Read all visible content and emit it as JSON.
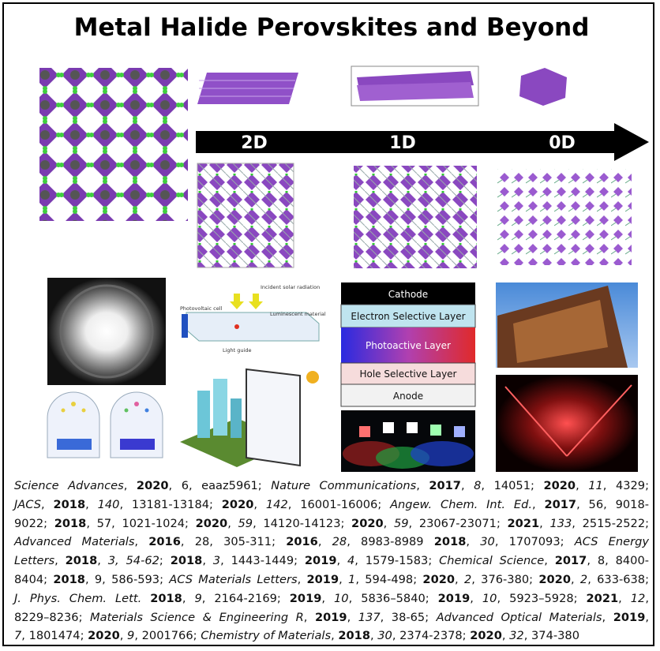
{
  "title": "Metal Halide Perovskites and Beyond",
  "dimensions": [
    "2D",
    "1D",
    "0D"
  ],
  "solar_diagram": {
    "labels": [
      "Incident solar radiation",
      "Photovoltaic cell",
      "Luminescent material",
      "Light guide"
    ]
  },
  "device_stack": [
    "Cathode",
    "Electron Selective Layer",
    "Photoactive Layer",
    "Hole Selective Layer",
    "Anode"
  ],
  "references": [
    [
      {
        "text": "Science Advances",
        "style": "italic"
      },
      {
        "text": ", "
      },
      {
        "text": "2020",
        "style": "bold"
      },
      {
        "text": ", 6, eaaz5961; "
      },
      {
        "text": "Nature Communications",
        "style": "italic"
      },
      {
        "text": ", "
      },
      {
        "text": "2017",
        "style": "bold"
      },
      {
        "text": ", "
      },
      {
        "text": "8",
        "style": "italic"
      },
      {
        "text": ", 14051; "
      },
      {
        "text": "2020",
        "style": "bold"
      },
      {
        "text": ", "
      },
      {
        "text": "11",
        "style": "italic"
      },
      {
        "text": ", 4329;"
      }
    ],
    [
      {
        "text": "JACS",
        "style": "italic"
      },
      {
        "text": ", "
      },
      {
        "text": "2018",
        "style": "bold"
      },
      {
        "text": ", "
      },
      {
        "text": "140",
        "style": "italic"
      },
      {
        "text": ", 13181-13184; "
      },
      {
        "text": "2020",
        "style": "bold"
      },
      {
        "text": ", "
      },
      {
        "text": "142",
        "style": "italic"
      },
      {
        "text": ", 16001-16006; "
      },
      {
        "text": "Angew. Chem. Int. Ed.",
        "style": "italic"
      },
      {
        "text": ", "
      },
      {
        "text": "2017",
        "style": "bold"
      },
      {
        "text": ", 56, 9018-"
      }
    ],
    [
      {
        "text": "9022; "
      },
      {
        "text": "2018",
        "style": "bold"
      },
      {
        "text": ", 57, 1021-1024; "
      },
      {
        "text": "2020",
        "style": "bold"
      },
      {
        "text": ", "
      },
      {
        "text": "59",
        "style": "italic"
      },
      {
        "text": ", 14120-14123; "
      },
      {
        "text": "2020",
        "style": "bold"
      },
      {
        "text": ", "
      },
      {
        "text": "59",
        "style": "italic"
      },
      {
        "text": ", 23067-23071; "
      },
      {
        "text": "2021",
        "style": "bold"
      },
      {
        "text": ", "
      },
      {
        "text": "133",
        "style": "italic"
      },
      {
        "text": ", 2515-2522;"
      }
    ],
    [
      {
        "text": "Advanced Materials",
        "style": "italic"
      },
      {
        "text": ", "
      },
      {
        "text": "2016",
        "style": "bold"
      },
      {
        "text": ", 28, 305-311; "
      },
      {
        "text": "2016",
        "style": "bold"
      },
      {
        "text": ", "
      },
      {
        "text": "28",
        "style": "italic"
      },
      {
        "text": ", 8983-8989 "
      },
      {
        "text": "2018",
        "style": "bold"
      },
      {
        "text": ", "
      },
      {
        "text": "30",
        "style": "italic"
      },
      {
        "text": ", 1707093; "
      },
      {
        "text": "ACS Energy",
        "style": "italic"
      }
    ],
    [
      {
        "text": "Letters",
        "style": "italic"
      },
      {
        "text": ", "
      },
      {
        "text": "2018",
        "style": "bold"
      },
      {
        "text": ", "
      },
      {
        "text": "3, 54-62",
        "style": "italic"
      },
      {
        "text": "; "
      },
      {
        "text": "2018",
        "style": "bold"
      },
      {
        "text": ", "
      },
      {
        "text": "3",
        "style": "italic"
      },
      {
        "text": ", 1443-1449; "
      },
      {
        "text": "2019",
        "style": "bold"
      },
      {
        "text": ", "
      },
      {
        "text": "4",
        "style": "italic"
      },
      {
        "text": ", 1579-1583; "
      },
      {
        "text": "Chemical Science",
        "style": "italic"
      },
      {
        "text": ", "
      },
      {
        "text": "2017",
        "style": "bold"
      },
      {
        "text": ", 8, 8400-"
      }
    ],
    [
      {
        "text": "8404; "
      },
      {
        "text": "2018",
        "style": "bold"
      },
      {
        "text": ", 9, 586-593; "
      },
      {
        "text": "ACS Materials Letters",
        "style": "italic"
      },
      {
        "text": ", "
      },
      {
        "text": "2019",
        "style": "bold"
      },
      {
        "text": ", "
      },
      {
        "text": "1",
        "style": "italic"
      },
      {
        "text": ", 594-498; "
      },
      {
        "text": "2020",
        "style": "bold"
      },
      {
        "text": ", "
      },
      {
        "text": "2",
        "style": "italic"
      },
      {
        "text": ", 376-380; "
      },
      {
        "text": "2020",
        "style": "bold"
      },
      {
        "text": ", "
      },
      {
        "text": "2",
        "style": "italic"
      },
      {
        "text": ", 633-638;"
      }
    ],
    [
      {
        "text": "J. Phys. Chem. Lett.",
        "style": "italic"
      },
      {
        "text": " "
      },
      {
        "text": "2018",
        "style": "bold"
      },
      {
        "text": ", "
      },
      {
        "text": "9",
        "style": "italic"
      },
      {
        "text": ", 2164-2169; "
      },
      {
        "text": "2019",
        "style": "bold"
      },
      {
        "text": ", "
      },
      {
        "text": "10",
        "style": "italic"
      },
      {
        "text": ", 5836–5840; "
      },
      {
        "text": "2019",
        "style": "bold"
      },
      {
        "text": ", "
      },
      {
        "text": "10",
        "style": "italic"
      },
      {
        "text": ", 5923–5928; "
      },
      {
        "text": "2021",
        "style": "bold"
      },
      {
        "text": ", "
      },
      {
        "text": "12",
        "style": "italic"
      },
      {
        "text": ","
      }
    ],
    [
      {
        "text": "8229–8236; "
      },
      {
        "text": "Materials Science & Engineering R",
        "style": "italic"
      },
      {
        "text": ", "
      },
      {
        "text": "2019",
        "style": "bold"
      },
      {
        "text": ", "
      },
      {
        "text": "137",
        "style": "italic"
      },
      {
        "text": ", 38-65; "
      },
      {
        "text": "Advanced Optical Materials",
        "style": "italic"
      },
      {
        "text": ", "
      },
      {
        "text": "2019",
        "style": "bold"
      },
      {
        "text": ","
      }
    ],
    [
      {
        "text": "7",
        "style": "italic"
      },
      {
        "text": ", 1801474; "
      },
      {
        "text": "2020",
        "style": "bold"
      },
      {
        "text": ", "
      },
      {
        "text": "9",
        "style": "italic"
      },
      {
        "text": ", 2001766; "
      },
      {
        "text": "Chemistry of Materials",
        "style": "italic"
      },
      {
        "text": ", "
      },
      {
        "text": "2018",
        "style": "bold"
      },
      {
        "text": ", "
      },
      {
        "text": "30",
        "style": "italic"
      },
      {
        "text": ", 2374-2378; "
      },
      {
        "text": "2020",
        "style": "bold"
      },
      {
        "text": ", "
      },
      {
        "text": "32",
        "style": "italic"
      },
      {
        "text": ", 374-380"
      }
    ]
  ]
}
